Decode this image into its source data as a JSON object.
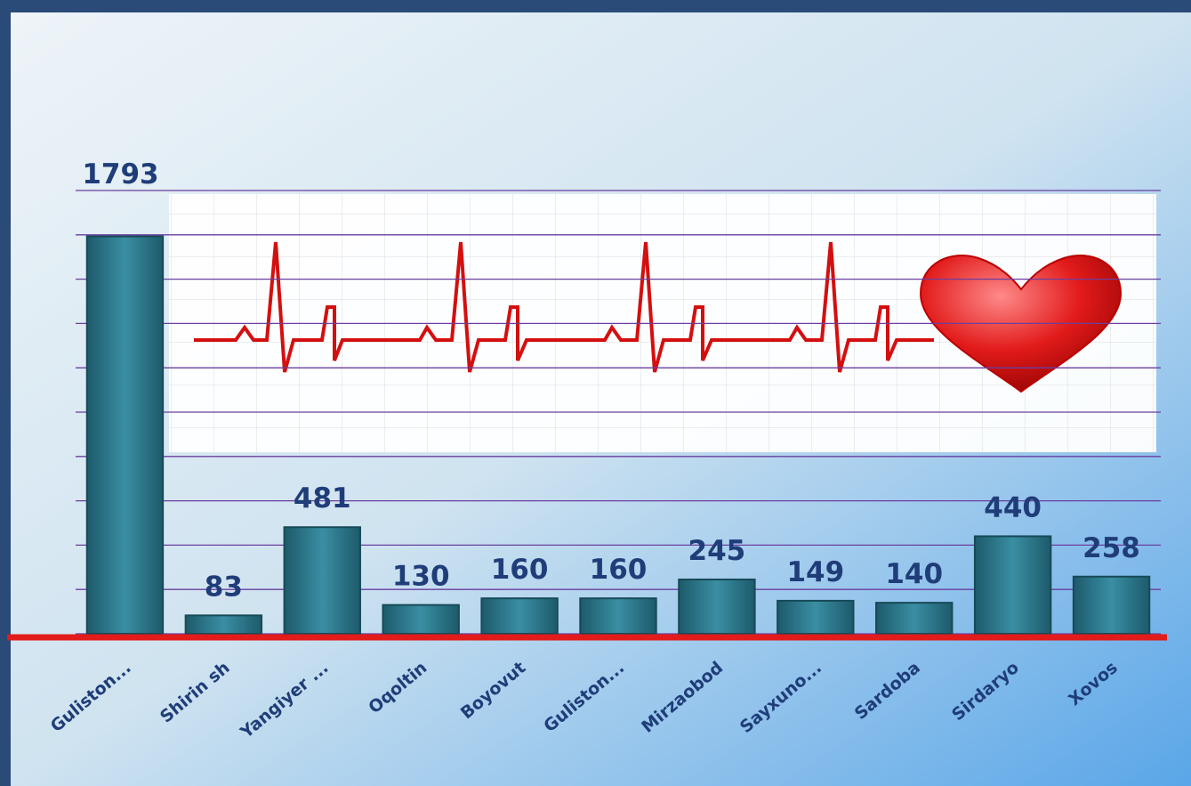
{
  "chart_data": {
    "type": "bar",
    "categories": [
      "Guliston...",
      "Shirin sh",
      "Yangiyer ...",
      "Oqoltin",
      "Boyovut",
      "Guliston...",
      "Mirzaobod",
      "Sayxuno...",
      "Sardoba",
      "Sirdaryo",
      "Xovos"
    ],
    "values": [
      1793,
      83,
      481,
      130,
      160,
      160,
      245,
      149,
      140,
      440,
      258
    ],
    "color": "#2f7d90",
    "ylim": [
      0,
      2000
    ],
    "yticks": [
      0,
      200,
      400,
      600,
      800,
      1000,
      1200,
      1400,
      1600,
      1800,
      2000
    ],
    "grid": true
  }
}
